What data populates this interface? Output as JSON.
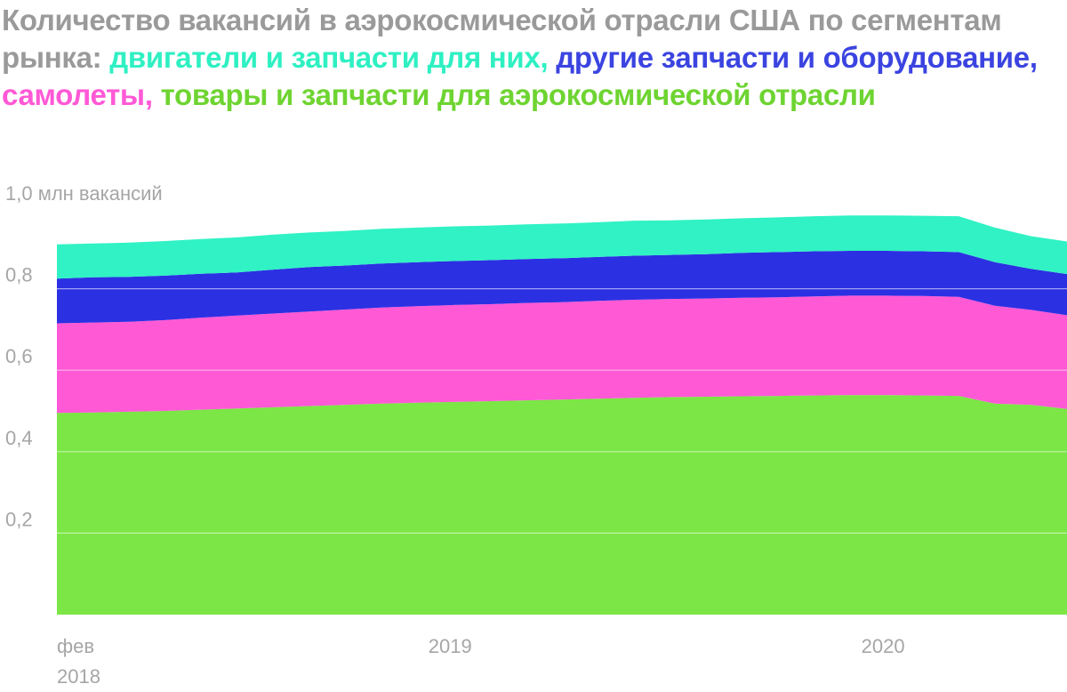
{
  "title": {
    "prefix": "Количество вакансий в аэрокосмической отрасли США по сегментам рынка: ",
    "segments": [
      {
        "text": "двигатели и запчасти для них",
        "sep": ", ",
        "color": "#2ef0c2"
      },
      {
        "text": "другие запчасти и оборудование",
        "sep": ", ",
        "color": "#3b44e0"
      },
      {
        "text": "самолеты",
        "sep": ", ",
        "color": "#ff59d6"
      },
      {
        "text": "товары и запчасти для аэрокосмической отрасли",
        "sep": "",
        "color": "#6ed431"
      }
    ]
  },
  "chart_data": {
    "type": "area",
    "stacked": true,
    "x": [
      "2018-02",
      "2018-03",
      "2018-04",
      "2018-05",
      "2018-06",
      "2018-07",
      "2018-08",
      "2018-09",
      "2018-10",
      "2018-11",
      "2018-12",
      "2019-01",
      "2019-02",
      "2019-03",
      "2019-04",
      "2019-05",
      "2019-06",
      "2019-07",
      "2019-08",
      "2019-09",
      "2019-10",
      "2019-11",
      "2019-12",
      "2020-01",
      "2020-02",
      "2020-03",
      "2020-04",
      "2020-05",
      "2020-06"
    ],
    "series": [
      {
        "name": "товары и запчасти для аэрокосмической отрасли",
        "color": "#7be645",
        "values": [
          0.495,
          0.496,
          0.498,
          0.5,
          0.503,
          0.506,
          0.509,
          0.512,
          0.515,
          0.518,
          0.52,
          0.522,
          0.524,
          0.526,
          0.528,
          0.53,
          0.532,
          0.534,
          0.535,
          0.536,
          0.537,
          0.538,
          0.539,
          0.539,
          0.538,
          0.537,
          0.518,
          0.515,
          0.505
        ]
      },
      {
        "name": "самолеты",
        "color": "#ff59d6",
        "values": [
          0.22,
          0.221,
          0.221,
          0.223,
          0.226,
          0.228,
          0.23,
          0.232,
          0.234,
          0.236,
          0.237,
          0.238,
          0.238,
          0.239,
          0.239,
          0.24,
          0.241,
          0.241,
          0.241,
          0.242,
          0.242,
          0.243,
          0.244,
          0.244,
          0.244,
          0.243,
          0.24,
          0.233,
          0.23
        ]
      },
      {
        "name": "другие запчасти и оборудование",
        "color": "#2c30e3",
        "values": [
          0.11,
          0.111,
          0.11,
          0.109,
          0.108,
          0.106,
          0.108,
          0.109,
          0.108,
          0.108,
          0.108,
          0.108,
          0.108,
          0.108,
          0.108,
          0.108,
          0.108,
          0.108,
          0.109,
          0.11,
          0.111,
          0.111,
          0.11,
          0.11,
          0.11,
          0.11,
          0.107,
          0.101,
          0.101
        ]
      },
      {
        "name": "двигатели и запчасти для них",
        "color": "#30f2c4",
        "values": [
          0.084,
          0.083,
          0.084,
          0.085,
          0.085,
          0.086,
          0.086,
          0.085,
          0.085,
          0.085,
          0.085,
          0.085,
          0.085,
          0.085,
          0.085,
          0.085,
          0.086,
          0.085,
          0.085,
          0.085,
          0.085,
          0.086,
          0.087,
          0.087,
          0.087,
          0.088,
          0.085,
          0.08,
          0.08
        ]
      }
    ],
    "ylim": [
      0,
      1.0
    ],
    "y_ticks": [
      {
        "value": 0.2,
        "label": "0,2"
      },
      {
        "value": 0.4,
        "label": "0,4"
      },
      {
        "value": 0.6,
        "label": "0,6"
      },
      {
        "value": 0.8,
        "label": "0,8"
      },
      {
        "value": 1.0,
        "label": "1,0 млн вакансий"
      }
    ],
    "x_ticks": [
      {
        "x": "2018-02",
        "label": "фев",
        "label2": "2018"
      },
      {
        "x": "2019-01",
        "label": "2019",
        "label2": ""
      },
      {
        "x": "2020-01",
        "label": "2020",
        "label2": ""
      }
    ],
    "grid": true,
    "legend": "in title"
  }
}
